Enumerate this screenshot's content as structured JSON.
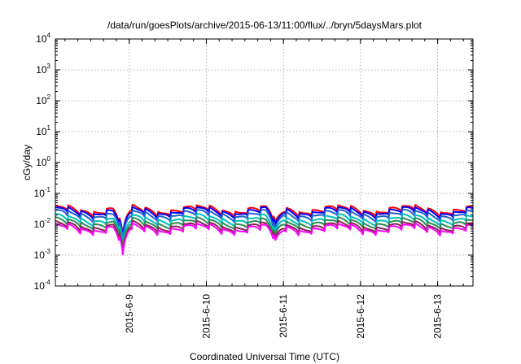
{
  "chart_data": {
    "type": "line",
    "title": "/data/run/goesPlots/archive/2015-06-13/11:00/flux/../bryn/5daysMars.plot",
    "xlabel": "Coordinated Universal Time (UTC)",
    "ylabel": "cGy/day",
    "yscale": "log",
    "ylim": [
      0.0001,
      10000
    ],
    "yticks": [
      {
        "base": "10",
        "exp": "-4"
      },
      {
        "base": "10",
        "exp": "-3"
      },
      {
        "base": "10",
        "exp": "-2"
      },
      {
        "base": "10",
        "exp": "-1"
      },
      {
        "base": "10",
        "exp": "0"
      },
      {
        "base": "10",
        "exp": "1"
      },
      {
        "base": "10",
        "exp": "2"
      },
      {
        "base": "10",
        "exp": "3"
      },
      {
        "base": "10",
        "exp": "4"
      }
    ],
    "xlim": [
      "2015-06-08 01:00",
      "2015-06-13 11:00"
    ],
    "xticks": [
      "2015-6-9",
      "2015-6-10",
      "2015-6-11",
      "2015-6-12",
      "2015-6-13"
    ],
    "grid": true,
    "series": [
      {
        "color": "#ff0000",
        "level": 0.034,
        "amp": 2.1
      },
      {
        "color": "#0000ff",
        "level": 0.03,
        "amp": 2.1
      },
      {
        "color": "#2060d0",
        "level": 0.024,
        "amp": 2.1
      },
      {
        "color": "#00c0c0",
        "level": 0.017,
        "amp": 2.0
      },
      {
        "color": "#2e8b57",
        "level": 0.013,
        "amp": 2.0
      },
      {
        "color": "#8b2252",
        "level": 0.01,
        "amp": 2.0
      },
      {
        "color": "#ff00ff",
        "level": 0.0085,
        "amp": 2.0
      }
    ],
    "events": [
      {
        "time": "2015-06-08 22:00",
        "factor": 0.11
      },
      {
        "time": "2015-06-10 21:30",
        "factor": 0.3
      }
    ],
    "period_hours": 4.0
  }
}
